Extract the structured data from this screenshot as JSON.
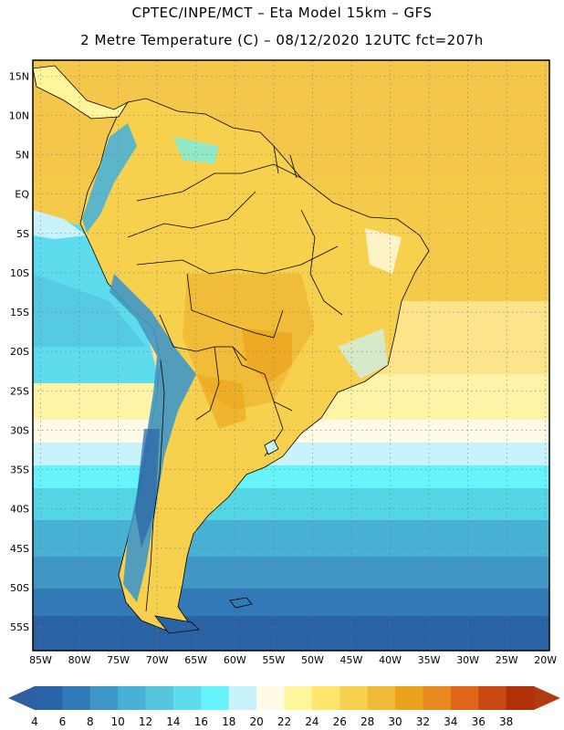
{
  "header": {
    "title": "CPTEC/INPE/MCT –  Eta Model 15km – GFS",
    "subtitle": "2 Metre Temperature (C) – 08/12/2020 12UTC fct=207h"
  },
  "map": {
    "lon_range": [
      -86,
      -19.5
    ],
    "lat_range": [
      -58,
      17
    ],
    "lat_labels": [
      {
        "value": 15,
        "label": "15N"
      },
      {
        "value": 10,
        "label": "10N"
      },
      {
        "value": 5,
        "label": "5N"
      },
      {
        "value": 0,
        "label": "EQ"
      },
      {
        "value": -5,
        "label": "5S"
      },
      {
        "value": -10,
        "label": "10S"
      },
      {
        "value": -15,
        "label": "15S"
      },
      {
        "value": -20,
        "label": "20S"
      },
      {
        "value": -25,
        "label": "25S"
      },
      {
        "value": -30,
        "label": "30S"
      },
      {
        "value": -35,
        "label": "35S"
      },
      {
        "value": -40,
        "label": "40S"
      },
      {
        "value": -45,
        "label": "45S"
      },
      {
        "value": -50,
        "label": "50S"
      },
      {
        "value": -55,
        "label": "55S"
      }
    ],
    "lon_labels": [
      {
        "value": -85,
        "label": "85W"
      },
      {
        "value": -80,
        "label": "80W"
      },
      {
        "value": -75,
        "label": "75W"
      },
      {
        "value": -70,
        "label": "70W"
      },
      {
        "value": -65,
        "label": "65W"
      },
      {
        "value": -60,
        "label": "60W"
      },
      {
        "value": -55,
        "label": "55W"
      },
      {
        "value": -50,
        "label": "50W"
      },
      {
        "value": -45,
        "label": "45W"
      },
      {
        "value": -40,
        "label": "40W"
      },
      {
        "value": -35,
        "label": "35W"
      },
      {
        "value": -30,
        "label": "30W"
      },
      {
        "value": -25,
        "label": "25W"
      },
      {
        "value": -20,
        "label": "20W"
      }
    ]
  },
  "colorbar": {
    "labels": [
      "4",
      "6",
      "8",
      "10",
      "12",
      "14",
      "16",
      "18",
      "20",
      "22",
      "24",
      "26",
      "28",
      "30",
      "32",
      "34",
      "36",
      "38"
    ],
    "colors": [
      "#2a62a6",
      "#3279b8",
      "#3f97c8",
      "#48b2d6",
      "#55c6de",
      "#5cdcec",
      "#66f3fa",
      "#c9f3fc",
      "#fffbe6",
      "#fff59a",
      "#ffe56e",
      "#f7d04e",
      "#f0ba37",
      "#eba31b",
      "#e88a1e",
      "#e0661a",
      "#c94813",
      "#b03208"
    ],
    "left_arrow_color": "#2e5fa0",
    "right_arrow_color": "#b23a0c"
  }
}
